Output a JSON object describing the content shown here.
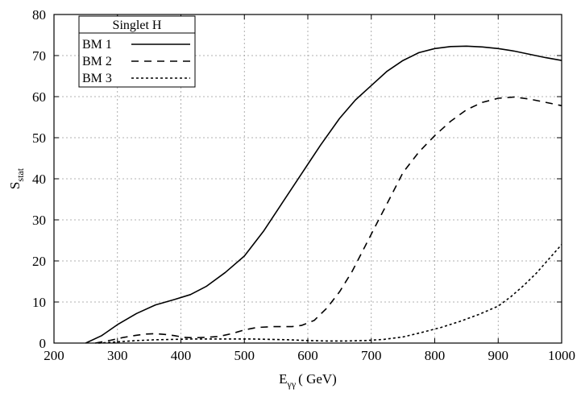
{
  "chart_data": {
    "type": "line",
    "xlabel_main": "E",
    "xlabel_sub": "γγ",
    "xlabel_unit": "( GeV)",
    "ylabel_main": "S",
    "ylabel_sub": "stat",
    "xlim": [
      200,
      1000
    ],
    "ylim": [
      0,
      80
    ],
    "xticks": [
      200,
      300,
      400,
      500,
      600,
      700,
      800,
      900,
      1000
    ],
    "yticks": [
      0,
      10,
      20,
      30,
      40,
      50,
      60,
      70,
      80
    ],
    "grid": true,
    "legend": {
      "title": "Singlet H",
      "position": "top-left"
    },
    "series": [
      {
        "name": "BM 1",
        "dash": "solid",
        "x": [
          250,
          275,
          300,
          330,
          360,
          390,
          415,
          440,
          470,
          500,
          530,
          560,
          590,
          620,
          650,
          675,
          700,
          725,
          750,
          775,
          800,
          825,
          850,
          875,
          900,
          925,
          950,
          975,
          1000
        ],
        "y": [
          0,
          1.8,
          4.5,
          7.2,
          9.3,
          10.6,
          11.8,
          13.8,
          17.2,
          21.2,
          27.2,
          34.2,
          41.2,
          48.2,
          54.7,
          59.2,
          62.7,
          66.2,
          68.8,
          70.7,
          71.7,
          72.2,
          72.3,
          72.1,
          71.7,
          71.1,
          70.3,
          69.5,
          68.8
        ]
      },
      {
        "name": "BM 2",
        "dash": "dashed",
        "x": [
          265,
          290,
          310,
          330,
          345,
          360,
          375,
          390,
          405,
          420,
          440,
          460,
          480,
          500,
          520,
          545,
          575,
          590,
          610,
          630,
          650,
          670,
          690,
          710,
          730,
          750,
          775,
          800,
          825,
          850,
          875,
          900,
          925,
          950,
          975,
          1000
        ],
        "y": [
          0,
          0.7,
          1.4,
          1.9,
          2.2,
          2.3,
          2.1,
          1.8,
          1.4,
          1.3,
          1.4,
          1.6,
          2.3,
          3.2,
          3.8,
          4.0,
          4.0,
          4.3,
          5.5,
          8.5,
          12.5,
          17.5,
          23.5,
          29.5,
          35.5,
          41.5,
          46.5,
          50.5,
          54.0,
          56.8,
          58.6,
          59.6,
          59.9,
          59.4,
          58.6,
          57.8
        ]
      },
      {
        "name": "BM 3",
        "dash": "dotted",
        "x": [
          270,
          300,
          330,
          360,
          390,
          420,
          450,
          480,
          510,
          540,
          570,
          600,
          630,
          660,
          690,
          720,
          750,
          780,
          810,
          840,
          870,
          900,
          920,
          940,
          960,
          980,
          1000
        ],
        "y": [
          0,
          0.3,
          0.6,
          0.8,
          0.9,
          1.0,
          1.0,
          1.0,
          1.0,
          0.9,
          0.8,
          0.6,
          0.5,
          0.5,
          0.6,
          0.9,
          1.5,
          2.6,
          3.8,
          5.3,
          7.0,
          9.0,
          11.3,
          14.0,
          17.0,
          20.5,
          24.0
        ]
      }
    ]
  }
}
